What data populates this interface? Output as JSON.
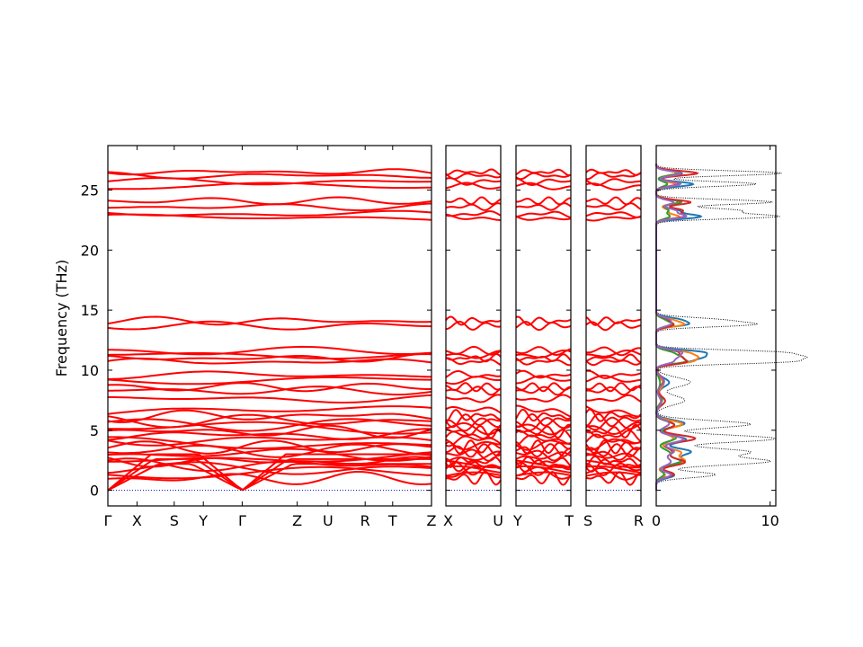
{
  "chart_data": [
    {
      "type": "line",
      "title": "",
      "ylabel": "Frequency (THz)",
      "ylim": [
        -1.3,
        28.7
      ],
      "yticks": [
        0,
        5,
        10,
        15,
        20,
        25
      ],
      "grid": false,
      "line_color": "#ff0000",
      "zero_line_color": "#0000cc",
      "segments": [
        {
          "name": "",
          "path_labels": [
            "Γ",
            "X",
            "S",
            "Y",
            "Γ",
            "Z",
            "U",
            "R",
            "T",
            "Z"
          ],
          "path_positions": [
            0,
            0.09,
            0.205,
            0.295,
            0.415,
            0.585,
            0.68,
            0.795,
            0.88,
            1.0
          ]
        },
        {
          "name": "",
          "path_labels": [
            "X",
            "U"
          ],
          "path_positions": [
            0,
            1
          ]
        },
        {
          "name": "",
          "path_labels": [
            "Y",
            "T"
          ],
          "path_positions": [
            0,
            1
          ]
        },
        {
          "name": "",
          "path_labels": [
            "S",
            "R"
          ],
          "path_positions": [
            0,
            1
          ]
        }
      ],
      "branch_frequencies": [
        0.0,
        0.0,
        0.0,
        1.0,
        1.4,
        1.8,
        2.1,
        2.4,
        2.7,
        3.0,
        3.3,
        3.6,
        3.9,
        4.2,
        4.6,
        4.9,
        5.2,
        5.5,
        5.8,
        6.2,
        6.6,
        7.6,
        8.3,
        8.6,
        9.2,
        9.6,
        10.7,
        11.0,
        11.3,
        11.6,
        13.7,
        14.1,
        22.7,
        23.0,
        23.6,
        24.1,
        25.3,
        25.7,
        26.2,
        26.5
      ]
    },
    {
      "type": "area",
      "title": "",
      "xlabel": "",
      "xlim": [
        0,
        10.5
      ],
      "xticks": [
        0,
        10
      ],
      "ylim": [
        -1.3,
        28.7
      ],
      "total_style": "black dotted",
      "series_colors": [
        "#1f77b4",
        "#ff7f0e",
        "#2ca02c",
        "#d62728",
        "#9467bd"
      ],
      "total_dos_peaks": [
        {
          "f": 1.3,
          "v": 5.2,
          "w": 0.25
        },
        {
          "f": 2.4,
          "v": 9.8,
          "w": 0.3
        },
        {
          "f": 3.2,
          "v": 8.0,
          "w": 0.3
        },
        {
          "f": 4.3,
          "v": 10.5,
          "w": 0.3
        },
        {
          "f": 5.5,
          "v": 8.3,
          "w": 0.3
        },
        {
          "f": 7.5,
          "v": 2.5,
          "w": 0.4
        },
        {
          "f": 9.0,
          "v": 3.0,
          "w": 0.4
        },
        {
          "f": 10.7,
          "v": 10.5,
          "w": 0.2
        },
        {
          "f": 11.1,
          "v": 10.5,
          "w": 0.2
        },
        {
          "f": 11.5,
          "v": 9.8,
          "w": 0.2
        },
        {
          "f": 13.8,
          "v": 8.0,
          "w": 0.2
        },
        {
          "f": 14.2,
          "v": 5.0,
          "w": 0.2
        },
        {
          "f": 22.8,
          "v": 10.5,
          "w": 0.2
        },
        {
          "f": 23.3,
          "v": 7.0,
          "w": 0.2
        },
        {
          "f": 24.0,
          "v": 10.2,
          "w": 0.2
        },
        {
          "f": 25.5,
          "v": 8.8,
          "w": 0.2
        },
        {
          "f": 26.4,
          "v": 11.0,
          "w": 0.2
        }
      ]
    }
  ]
}
